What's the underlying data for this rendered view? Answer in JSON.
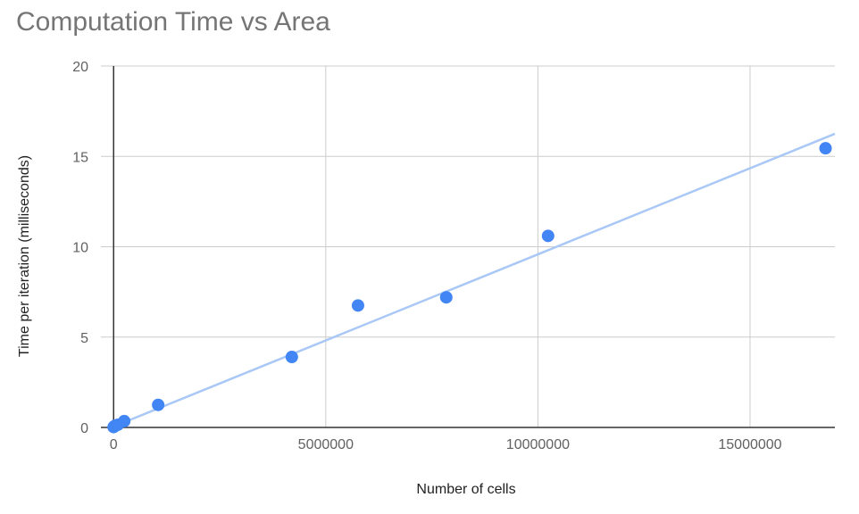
{
  "chart_data": {
    "type": "scatter",
    "title": "Computation Time vs Area",
    "xlabel": "Number of cells",
    "ylabel": "Time per iteration (milliseconds)",
    "xlim": [
      -300000,
      17000000
    ],
    "ylim": [
      0,
      20
    ],
    "x_ticks": [
      0,
      5000000,
      10000000,
      15000000
    ],
    "x_tick_labels": [
      "0",
      "5000000",
      "10000000",
      "15000000"
    ],
    "y_ticks": [
      0,
      5,
      10,
      15,
      20
    ],
    "y_tick_labels": [
      "0",
      "5",
      "10",
      "15",
      "20"
    ],
    "grid": true,
    "legend": "none",
    "series": [
      {
        "x": [
          0,
          10000,
          40000,
          100000,
          250000,
          1050000,
          4200000,
          5760000,
          7840000,
          10240000,
          16780000
        ],
        "y": [
          0.02,
          0.05,
          0.1,
          0.15,
          0.35,
          1.25,
          3.9,
          6.75,
          7.2,
          10.6,
          15.45
        ],
        "color": "#4285f4"
      }
    ],
    "trendline": {
      "type": "linear",
      "x_start": 0,
      "y_start": 0.05,
      "x_end": 17000000,
      "y_end": 16.25,
      "color": "#a9c8f5"
    }
  }
}
